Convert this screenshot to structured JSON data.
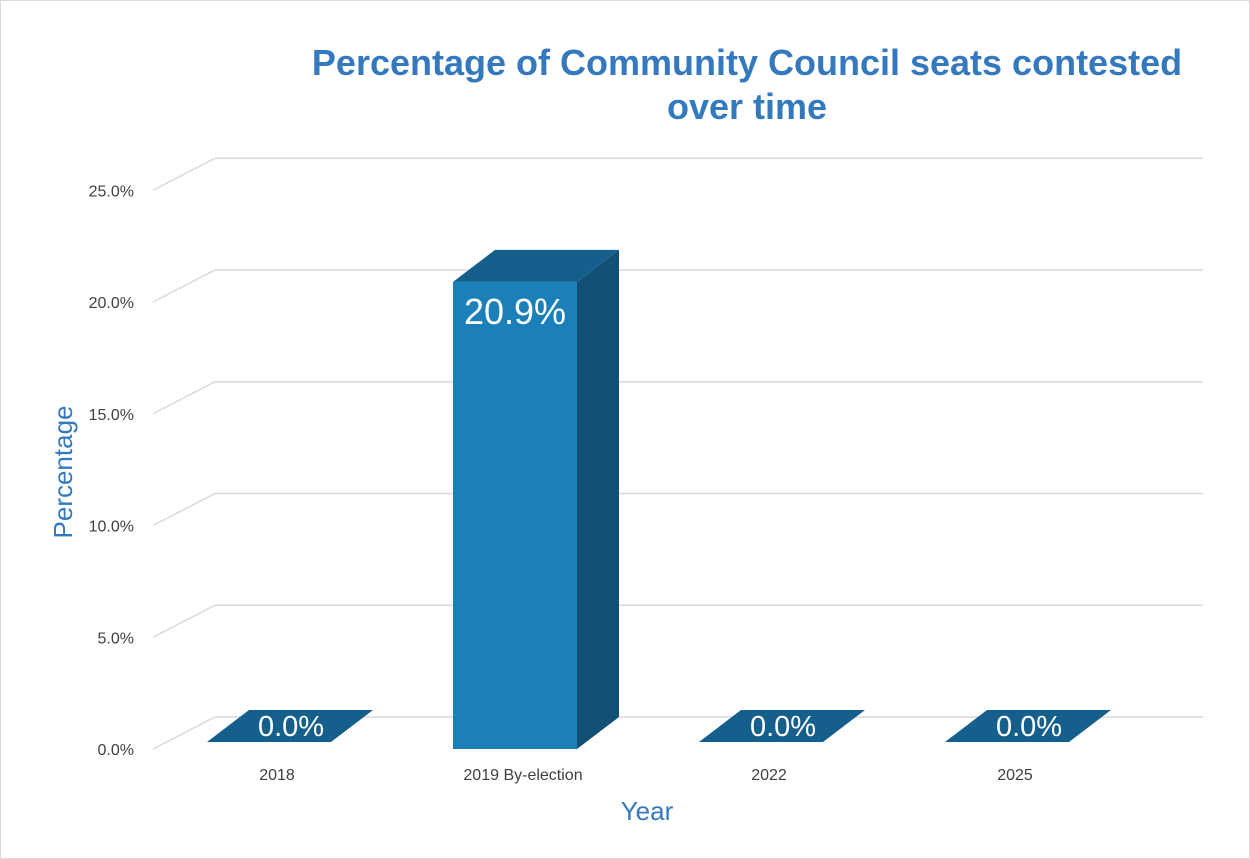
{
  "chart_data": {
    "type": "bar",
    "title_lines": [
      "Percentage of Community Council seats contested",
      "over time"
    ],
    "xlabel": "Year",
    "ylabel": "Percentage",
    "categories": [
      "2018",
      "2019 By-election",
      "2022",
      "2025"
    ],
    "values": [
      0.0,
      20.9,
      0.0,
      0.0
    ],
    "data_labels": [
      "0.0%",
      "20.9%",
      "0.0%",
      "0.0%"
    ],
    "y_ticks": [
      "0.0%",
      "5.0%",
      "10.0%",
      "15.0%",
      "20.0%",
      "25.0%"
    ],
    "y_tick_values": [
      0,
      5,
      10,
      15,
      20,
      25
    ],
    "ylim": [
      0,
      25
    ],
    "grid": true,
    "legend": "none",
    "three_d": true,
    "colors": {
      "bar_front": "#1b80b9",
      "bar_side": "#125075",
      "bar_top": "#155f8c",
      "gridline": "#d9d9d9",
      "title": "#3478be"
    }
  }
}
